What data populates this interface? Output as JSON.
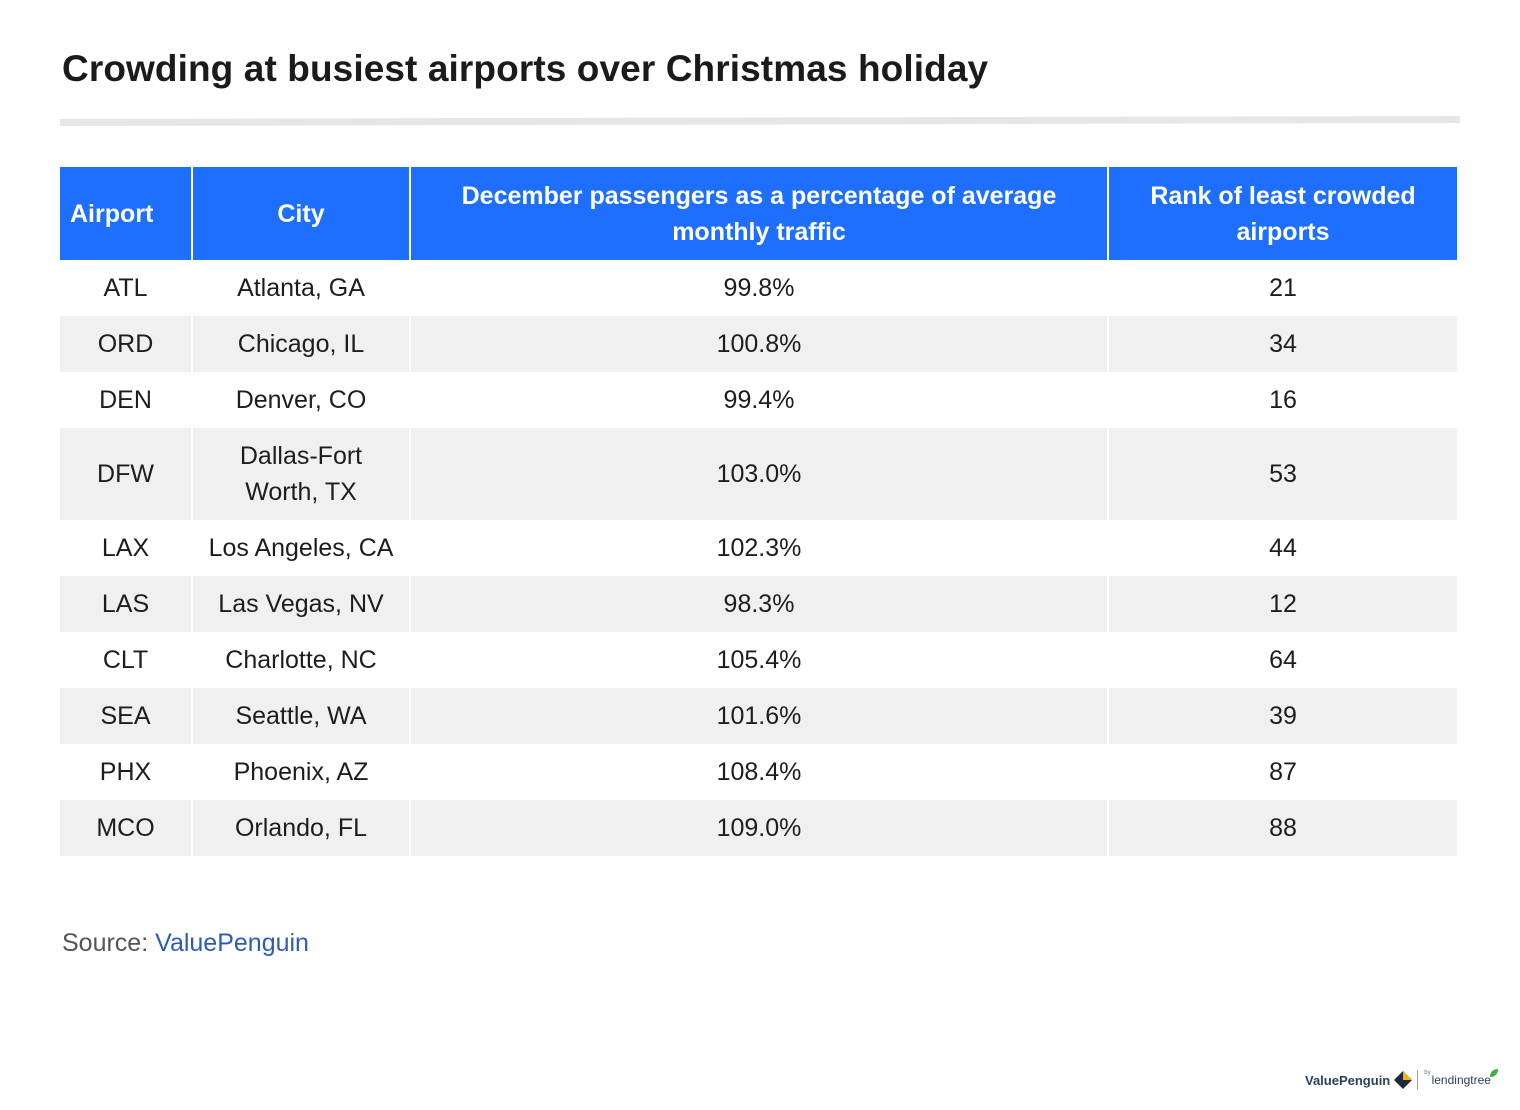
{
  "title": "Crowding at busiest airports over Christmas holiday",
  "chart_data": {
    "type": "table",
    "columns": [
      "Airport",
      "City",
      "December passengers as a percentage of average monthly traffic",
      "Rank of least crowded airports"
    ],
    "rows": [
      [
        "ATL",
        "Atlanta, GA",
        "99.8%",
        "21"
      ],
      [
        "ORD",
        "Chicago, IL",
        "100.8%",
        "34"
      ],
      [
        "DEN",
        "Denver, CO",
        "99.4%",
        "16"
      ],
      [
        "DFW",
        "Dallas-Fort Worth, TX",
        "103.0%",
        "53"
      ],
      [
        "LAX",
        "Los Angeles, CA",
        "102.3%",
        "44"
      ],
      [
        "LAS",
        "Las Vegas, NV",
        "98.3%",
        "12"
      ],
      [
        "CLT",
        "Charlotte, NC",
        "105.4%",
        "64"
      ],
      [
        "SEA",
        "Seattle, WA",
        "101.6%",
        "39"
      ],
      [
        "PHX",
        "Phoenix, AZ",
        "108.4%",
        "87"
      ],
      [
        "MCO",
        "Orlando, FL",
        "109.0%",
        "88"
      ]
    ]
  },
  "source": {
    "label": "Source:",
    "link_text": "ValuePenguin"
  },
  "branding": {
    "name": "ValuePenguin",
    "by": "by",
    "partner": "lendingtree"
  },
  "colors": {
    "header_bg": "#1f6fff",
    "stripe_bg": "#f0f0f0",
    "link": "#2c5cb8"
  }
}
